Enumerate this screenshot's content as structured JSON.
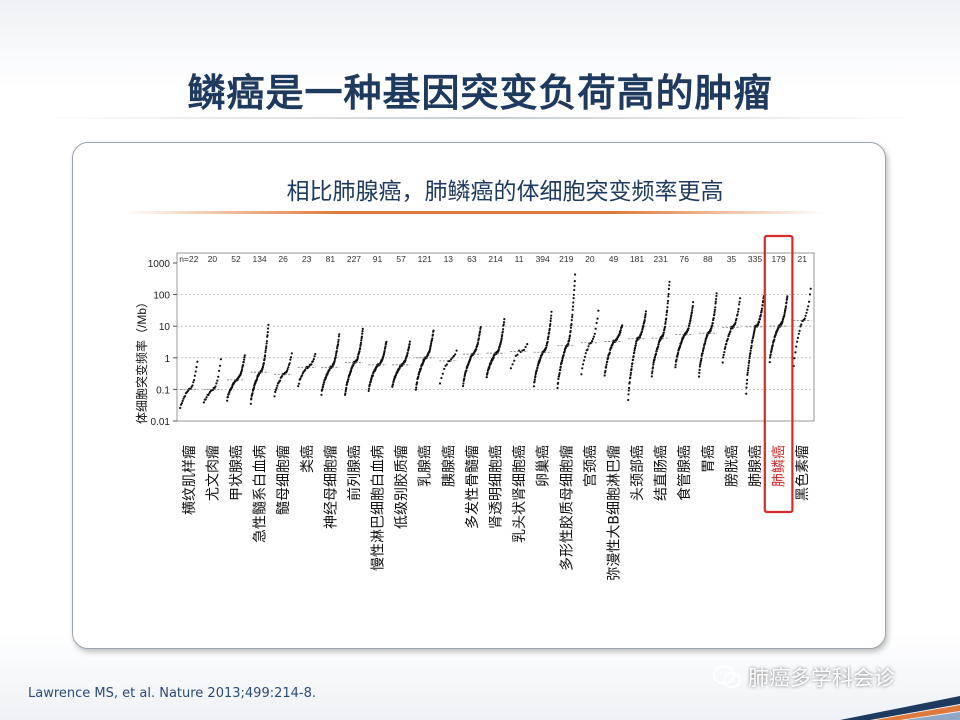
{
  "slide": {
    "title": "鳞癌是一种基因突变负荷高的肿瘤",
    "subtitle": "相比肺腺癌，肺鳞癌的体细胞突变频率更高",
    "citation": "Lawrence MS, et al. Nature 2013;499:214-8.",
    "watermark": "肺癌多学科会诊",
    "colors": {
      "title": "#1f3a5f",
      "accent_orange": "#e07a3c",
      "highlight_red": "#d62b2b",
      "points": "#111111"
    }
  },
  "chart_data": {
    "type": "scatter",
    "ylabel": "体细胞突变频率（/Mb）",
    "yscale": "log",
    "ylim": [
      0.01,
      1000
    ],
    "yticks": [
      "1000",
      "100",
      "10",
      "1",
      "0.1",
      "0.01"
    ],
    "n_prefix": "n=",
    "highlight_index": 25,
    "categories": [
      "横纹肌样瘤",
      "尤文肉瘤",
      "甲状腺癌",
      "急性髓系白血病",
      "髓母细胞瘤",
      "类癌",
      "神经母细胞瘤",
      "前列腺癌",
      "慢性淋巴细胞白血病",
      "低级别胶质瘤",
      "乳腺癌",
      "胰腺癌",
      "多发性骨髓瘤",
      "肾透明细胞癌",
      "乳头状肾细胞癌",
      "卵巢癌",
      "多形性胶质母细胞瘤",
      "宫颈癌",
      "弥漫性大B细胞淋巴瘤",
      "头颈部癌",
      "结直肠癌",
      "食管腺癌",
      "胃癌",
      "膀胱癌",
      "肺腺癌",
      "肺鳞癌",
      "黑色素瘤"
    ],
    "n_values": [
      "22",
      "20",
      "52",
      "134",
      "26",
      "23",
      "81",
      "227",
      "91",
      "57",
      "121",
      "13",
      "63",
      "214",
      "11",
      "394",
      "219",
      "20",
      "49",
      "181",
      "231",
      "76",
      "88",
      "35",
      "335",
      "179",
      "21"
    ],
    "medians": [
      0.1,
      0.1,
      0.2,
      0.35,
      0.3,
      0.5,
      0.5,
      0.7,
      0.6,
      0.6,
      1.0,
      0.8,
      1.3,
      1.4,
      1.6,
      1.5,
      2.4,
      3.0,
      3.3,
      4.0,
      4.2,
      5.5,
      6.0,
      9.0,
      9.5,
      10.0,
      15.0
    ],
    "spread_min": [
      0.02,
      0.03,
      0.04,
      0.03,
      0.05,
      0.1,
      0.06,
      0.05,
      0.08,
      0.1,
      0.08,
      0.1,
      0.1,
      0.2,
      0.3,
      0.1,
      0.08,
      0.2,
      0.2,
      0.03,
      0.2,
      0.4,
      0.2,
      0.5,
      0.05,
      0.6,
      0.3
    ],
    "spread_max": [
      1.0,
      1.2,
      1.3,
      13.0,
      1.5,
      1.5,
      6.0,
      9.0,
      3.5,
      3.5,
      8.0,
      2.0,
      10.0,
      18.0,
      3.0,
      30.0,
      500.0,
      40.0,
      12.0,
      30.0,
      300.0,
      60.0,
      120.0,
      90.0,
      100.0,
      100.0,
      200.0
    ]
  }
}
